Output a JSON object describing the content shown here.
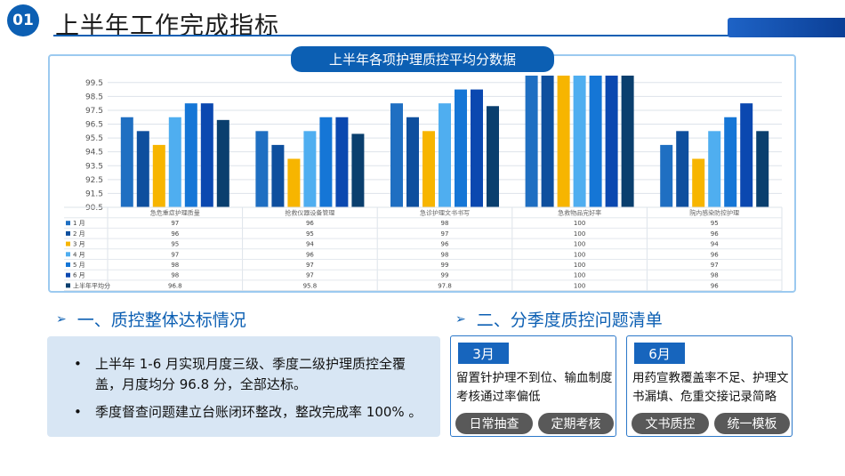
{
  "header": {
    "number": "01",
    "title": "上半年工作完成指标"
  },
  "chart_panel": {
    "title": "上半年各项护理质控平均分数据"
  },
  "chart_data": {
    "type": "bar",
    "categories": [
      "急危重症护理质量",
      "抢救仪器设备管理",
      "急诊护理文书书写",
      "急救物品完好率",
      "院内感染防控护理"
    ],
    "ylim": [
      90.5,
      100
    ],
    "yticks": [
      "90.5",
      "91.5",
      "92.5",
      "93.5",
      "94.5",
      "95.5",
      "96.5",
      "97.5",
      "98.5",
      "99.5"
    ],
    "series": [
      {
        "name": "1 月",
        "values": [
          97,
          96,
          98,
          100,
          95
        ],
        "labels": [
          "97",
          "96",
          "98",
          "100",
          "95"
        ],
        "color": "#1f6fc2"
      },
      {
        "name": "2 月",
        "values": [
          96,
          95,
          97,
          100,
          96
        ],
        "labels": [
          "96",
          "95",
          "97",
          "100",
          "96"
        ],
        "color": "#0e4f9e"
      },
      {
        "name": "3 月",
        "values": [
          95,
          94,
          96,
          100,
          94
        ],
        "labels": [
          "95",
          "94",
          "96",
          "100",
          "94"
        ],
        "color": "#f7b500"
      },
      {
        "name": "4 月",
        "values": [
          97,
          96,
          98,
          100,
          96
        ],
        "labels": [
          "97",
          "96",
          "98",
          "100",
          "96"
        ],
        "color": "#4faef0"
      },
      {
        "name": "5 月",
        "values": [
          98,
          97,
          99,
          100,
          97
        ],
        "labels": [
          "98",
          "97",
          "99",
          "100",
          "97"
        ],
        "color": "#1576d6"
      },
      {
        "name": "6 月",
        "values": [
          98,
          97,
          99,
          100,
          98
        ],
        "labels": [
          "98",
          "97",
          "99",
          "100",
          "98"
        ],
        "color": "#0b48b0"
      },
      {
        "name": "上半年平均分",
        "values": [
          96.8,
          95.8,
          97.8,
          100,
          96
        ],
        "labels": [
          "96.8",
          "95.8",
          "97.8",
          "100",
          "96"
        ],
        "color": "#0a3f6e"
      }
    ]
  },
  "sections": {
    "left_heading": "一、质控整体达标情况",
    "right_heading": "二、分季度质控问题清单",
    "arrow": "➢"
  },
  "summary": {
    "points": [
      "上半年 1-6 月实现月度三级、季度二级护理质控全覆盖，月度均分 96.8 分，全部达标。",
      "季度督查问题建立台账闭环整改，整改完成率 100% 。"
    ]
  },
  "issues": [
    {
      "month": "3月",
      "text": "留置针护理不到位、输血制度考核通过率偏低",
      "tags": [
        "日常抽查",
        "定期考核"
      ]
    },
    {
      "month": "6月",
      "text": "用药宣教覆盖率不足、护理文书漏填、危重交接记录简略",
      "tags": [
        "文书质控",
        "统一模板"
      ]
    }
  ]
}
